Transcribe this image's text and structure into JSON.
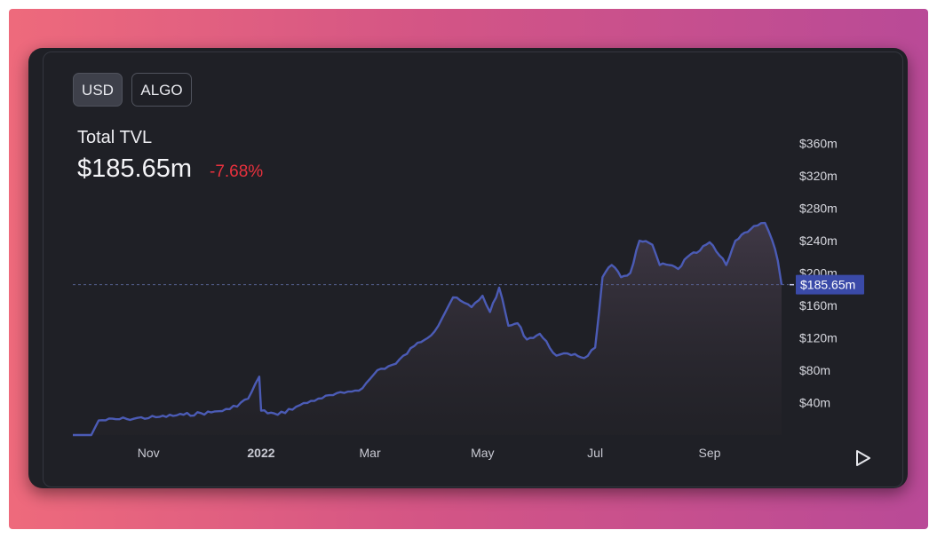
{
  "currency_toggle": {
    "options": [
      "USD",
      "ALGO"
    ],
    "selected": "USD"
  },
  "header": {
    "title": "Total TVL",
    "value": "$185.65m",
    "change": "-7.68%"
  },
  "colors": {
    "line": "#4b5bb5",
    "price_tag": "#3a4aa8",
    "negative": "#e8313d"
  },
  "chart_data": {
    "type": "area",
    "title": "Total TVL",
    "xlabel": "",
    "ylabel": "",
    "x_ticks": [
      "Nov",
      "2022",
      "Mar",
      "May",
      "Jul",
      "Sep"
    ],
    "y_ticks": [
      "$40m",
      "$80m",
      "$120m",
      "$160m",
      "$200m",
      "$240m",
      "$280m",
      "$320m",
      "$360m"
    ],
    "y_tick_values": [
      40,
      80,
      120,
      160,
      200,
      240,
      280,
      320,
      360
    ],
    "ylim": [
      0,
      370
    ],
    "current_label": "$185.65m",
    "current_value": 185.65,
    "grid": false,
    "series": [
      {
        "unit": "USD millions",
        "x": [
          "2021-09-21",
          "2021-10-01",
          "2021-10-05",
          "2021-10-20",
          "2021-11-05",
          "2021-11-20",
          "2021-12-05",
          "2021-12-15",
          "2021-12-25",
          "2021-12-31",
          "2022-01-01",
          "2022-01-10",
          "2022-01-20",
          "2022-02-01",
          "2022-02-15",
          "2022-02-25",
          "2022-03-05",
          "2022-03-15",
          "2022-03-25",
          "2022-04-05",
          "2022-04-15",
          "2022-04-25",
          "2022-05-01",
          "2022-05-05",
          "2022-05-10",
          "2022-05-15",
          "2022-05-20",
          "2022-05-25",
          "2022-06-01",
          "2022-06-10",
          "2022-06-20",
          "2022-06-25",
          "2022-07-01",
          "2022-07-05",
          "2022-07-10",
          "2022-07-15",
          "2022-07-20",
          "2022-07-25",
          "2022-08-01",
          "2022-08-05",
          "2022-08-10",
          "2022-08-15",
          "2022-08-20",
          "2022-08-25",
          "2022-09-01",
          "2022-09-10",
          "2022-09-15",
          "2022-09-20",
          "2022-09-25",
          "2022-10-01",
          "2022-10-05",
          "2022-10-08",
          "2022-10-10"
        ],
        "values": [
          0,
          0,
          18,
          20,
          22,
          25,
          28,
          32,
          45,
          72,
          30,
          25,
          35,
          45,
          52,
          58,
          80,
          88,
          110,
          128,
          170,
          158,
          172,
          152,
          182,
          135,
          138,
          118,
          125,
          98,
          100,
          95,
          108,
          195,
          210,
          195,
          200,
          240,
          235,
          210,
          210,
          205,
          220,
          225,
          238,
          210,
          240,
          250,
          258,
          262,
          240,
          215,
          185.65
        ]
      }
    ]
  }
}
